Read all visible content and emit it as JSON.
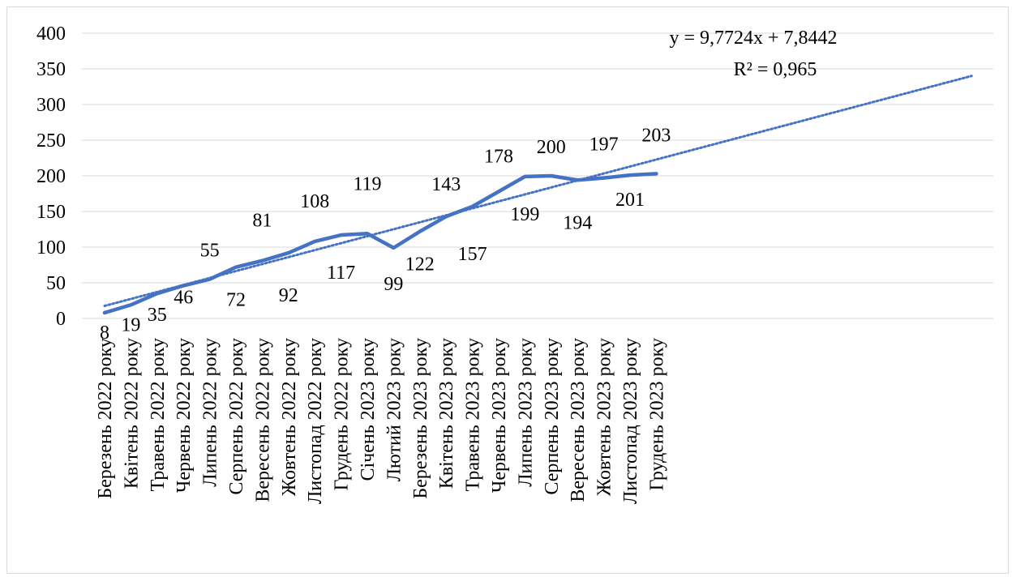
{
  "chart_data": {
    "type": "line",
    "categories": [
      "Березень 2022 року",
      "Квітень 2022 року",
      "Травень 2022 року",
      "Червень 2022 року",
      "Липень 2022 року",
      "Серпень 2022 року",
      "Вересень 2022 року",
      "Жовтень 2022 року",
      "Листопад 2022 року",
      "Грудень 2022 року",
      "Січень 2023 року",
      "Лютий 2023 року",
      "Березень 2023 року",
      "Квітень 2023 року",
      "Травень 2023 року",
      "Червень 2023 року",
      "Липень 2023 року",
      "Серпень 2023 року",
      "Вересень 2023 року",
      "Жовтень 2023 року",
      "Листопад 2023 року",
      "Грудень 2023 року"
    ],
    "series": [
      {
        "values": [
          8,
          19,
          35,
          46,
          55,
          72,
          81,
          92,
          108,
          117,
          119,
          99,
          122,
          143,
          157,
          178,
          199,
          200,
          194,
          197,
          201,
          203
        ],
        "color": "#4472c4"
      }
    ],
    "trendline": {
      "type": "linear",
      "slope": 9.7724,
      "intercept": 7.8442,
      "equation": "y = 9,7724x + 7,8442",
      "r_squared": "R² = 0,965",
      "color": "#4472c4",
      "style": "dotted"
    },
    "yticks": [
      "0",
      "50",
      "100",
      "150",
      "200",
      "250",
      "300",
      "350",
      "400"
    ],
    "ylim": [
      0,
      400
    ],
    "grid": true,
    "legend": "none"
  }
}
